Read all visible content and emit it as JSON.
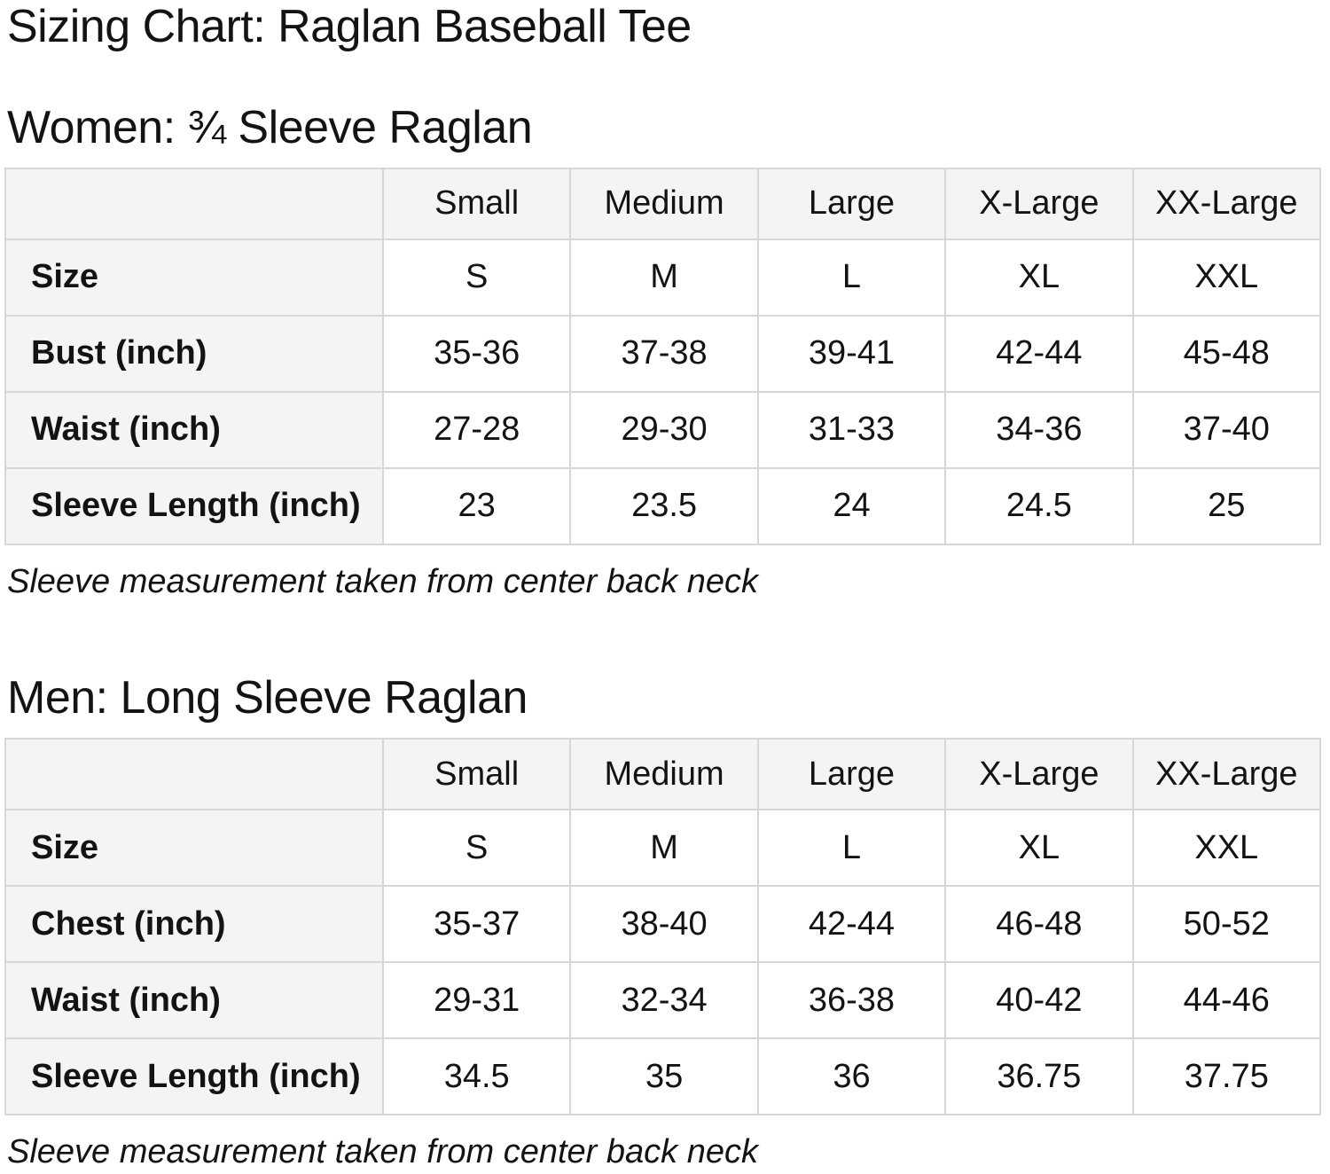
{
  "page": {
    "title": "Sizing Chart: Raglan Baseball Tee"
  },
  "colors": {
    "cell_header_bg": "#f4f4f4",
    "table_border": "#d7d7d7",
    "text": "#131313",
    "page_bg": "#ffffff"
  },
  "sections": [
    {
      "heading": "Women: ¾ Sleeve Raglan",
      "table": {
        "corner_label": "",
        "column_headers": [
          "Small",
          "Medium",
          "Large",
          "X-Large",
          "XX-Large"
        ],
        "rows": [
          {
            "label": "Size",
            "values": [
              "S",
              "M",
              "L",
              "XL",
              "XXL"
            ]
          },
          {
            "label": "Bust (inch)",
            "values": [
              "35-36",
              "37-38",
              "39-41",
              "42-44",
              "45-48"
            ]
          },
          {
            "label": "Waist (inch)",
            "values": [
              "27-28",
              "29-30",
              "31-33",
              "34-36",
              "37-40"
            ]
          },
          {
            "label": "Sleeve Length (inch)",
            "values": [
              "23",
              "23.5",
              "24",
              "24.5",
              "25"
            ]
          }
        ]
      },
      "footnote": "Sleeve measurement taken from center back neck"
    },
    {
      "heading": "Men: Long Sleeve Raglan",
      "table": {
        "corner_label": "",
        "column_headers": [
          "Small",
          "Medium",
          "Large",
          "X-Large",
          "XX-Large"
        ],
        "rows": [
          {
            "label": "Size",
            "values": [
              "S",
              "M",
              "L",
              "XL",
              "XXL"
            ]
          },
          {
            "label": "Chest (inch)",
            "values": [
              "35-37",
              "38-40",
              "42-44",
              "46-48",
              "50-52"
            ]
          },
          {
            "label": "Waist (inch)",
            "values": [
              "29-31",
              "32-34",
              "36-38",
              "40-42",
              "44-46"
            ]
          },
          {
            "label": "Sleeve Length (inch)",
            "values": [
              "34.5",
              "35",
              "36",
              "36.75",
              "37.75"
            ]
          }
        ]
      },
      "footnote": "Sleeve measurement taken from center back neck"
    }
  ]
}
